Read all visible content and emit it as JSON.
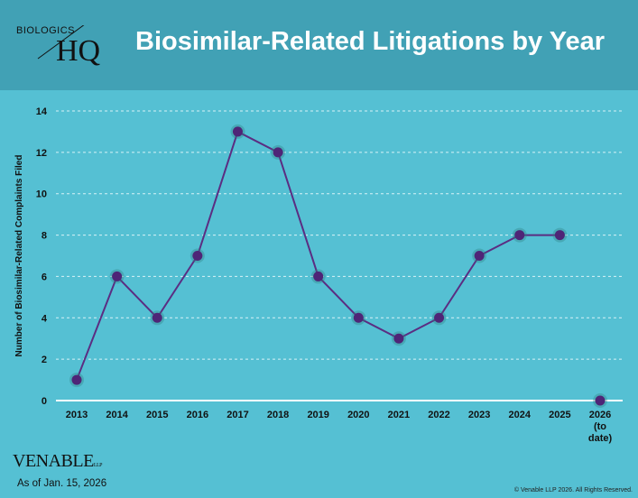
{
  "header": {
    "title": "Biosimilar-Related Litigations by Year",
    "logo_small": "BIOLOGICS",
    "logo_big": "HQ"
  },
  "footer": {
    "venable": "VENABLE",
    "venable_suffix": "LLP",
    "as_of": "As of Jan. 15, 2026",
    "copyright": "© Venable LLP 2026. All Rights Reserved."
  },
  "chart_data": {
    "type": "line",
    "title": "Biosimilar-Related Litigations by Year",
    "ylabel": "Number of Biosimilar-Related Complaints Filed",
    "xlabel": "",
    "categories": [
      "2013",
      "2014",
      "2015",
      "2016",
      "2017",
      "2018",
      "2019",
      "2020",
      "2021",
      "2022",
      "2023",
      "2024",
      "2025",
      "2026 (to date)"
    ],
    "values": [
      1,
      6,
      4,
      7,
      13,
      12,
      6,
      4,
      3,
      4,
      7,
      8,
      8,
      0
    ],
    "ylim": [
      0,
      14
    ],
    "yticks": [
      0,
      2,
      4,
      6,
      8,
      10,
      12,
      14
    ],
    "grid": "dashed horizontal",
    "colors": {
      "line": "#5b2d82",
      "marker": "#4e2577",
      "grid": "#d8f2f7"
    }
  }
}
